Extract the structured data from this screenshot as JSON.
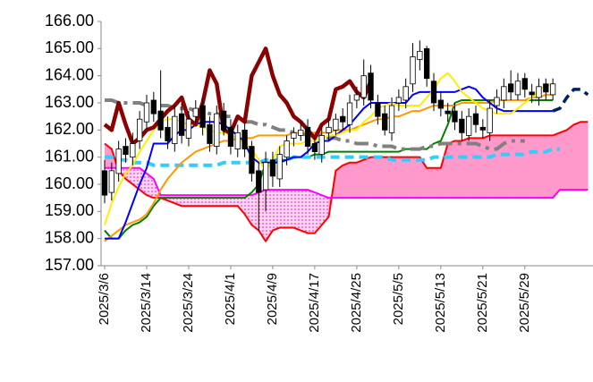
{
  "chart_data": {
    "type": "candlestick",
    "categories": [
      "2025/3/6",
      null,
      null,
      null,
      null,
      null,
      "2025/3/14",
      null,
      null,
      null,
      null,
      null,
      "2025/3/24",
      null,
      null,
      null,
      null,
      null,
      "2025/4/1",
      null,
      null,
      null,
      null,
      null,
      "2025/4/9",
      null,
      null,
      null,
      null,
      null,
      "2025/4/17",
      null,
      null,
      null,
      null,
      null,
      "2025/4/25",
      null,
      null,
      null,
      null,
      null,
      "2025/5/5",
      null,
      null,
      null,
      null,
      null,
      "2025/5/13",
      null,
      null,
      null,
      null,
      null,
      "2025/5/21",
      null,
      null,
      null,
      null,
      null,
      "2025/5/29",
      null,
      null,
      null,
      null,
      null,
      null,
      null,
      null,
      null
    ],
    "ylim": [
      157,
      166
    ],
    "yticks": [
      {
        "value": 157,
        "label": "157.00"
      },
      {
        "value": 158,
        "label": "158.00"
      },
      {
        "value": 159,
        "label": "159.00"
      },
      {
        "value": 160,
        "label": "160.00"
      },
      {
        "value": 161,
        "label": "161.00"
      },
      {
        "value": 162,
        "label": "162.00"
      },
      {
        "value": 163,
        "label": "163.00"
      },
      {
        "value": 164,
        "label": "164.00"
      },
      {
        "value": 165,
        "label": "165.00"
      },
      {
        "value": 166,
        "label": "166.00"
      }
    ],
    "candles": {
      "up_color": "#ffffff",
      "down_color": "#000000",
      "open": [
        160.5,
        159.7,
        160.4,
        161.4,
        161.0,
        161.6,
        162.3,
        163.1,
        162.7,
        162.1,
        161.5,
        162.6,
        161.7,
        162.5,
        162.9,
        162.2,
        161.4,
        162.7,
        162.1,
        161.3,
        162.0,
        161.4,
        160.5,
        159.8,
        160.9,
        160.2,
        161.0,
        161.7,
        161.8,
        162.1,
        161.5,
        161.1,
        161.9,
        162.0,
        162.5,
        162.2,
        163.1,
        163.2,
        164.1,
        163.0,
        162.6,
        161.9,
        163.0,
        163.1,
        163.7,
        164.6,
        165.0,
        163.8,
        163.1,
        162.7,
        162.7,
        162.4,
        161.8,
        162.6,
        162.1,
        161.9,
        162.9,
        163.1,
        163.7,
        163.3,
        163.9,
        163.4,
        163.2,
        163.7,
        163.3,
        null,
        null,
        null,
        null,
        null
      ],
      "high": [
        160.9,
        160.8,
        161.6,
        161.7,
        161.9,
        162.7,
        163.3,
        163.4,
        164.2,
        162.5,
        162.9,
        163.0,
        162.7,
        163.1,
        163.2,
        162.5,
        162.9,
        163.0,
        162.4,
        162.2,
        162.3,
        161.6,
        160.8,
        161.2,
        161.2,
        161.4,
        161.8,
        162.1,
        162.3,
        162.4,
        161.7,
        162.1,
        162.4,
        162.6,
        162.8,
        163.3,
        163.6,
        164.6,
        164.4,
        163.3,
        162.9,
        163.2,
        163.5,
        163.9,
        165.2,
        165.3,
        165.1,
        164.1,
        163.4,
        163.0,
        163.0,
        162.7,
        162.8,
        162.9,
        162.4,
        163.1,
        163.5,
        163.9,
        164.2,
        164.1,
        164.1,
        163.7,
        163.9,
        163.9,
        163.9,
        null,
        null,
        null,
        null,
        null
      ],
      "low": [
        159.3,
        159.4,
        160.1,
        160.8,
        160.7,
        161.3,
        162.0,
        162.3,
        161.7,
        161.3,
        161.2,
        161.5,
        161.4,
        162.2,
        161.8,
        161.2,
        161.1,
        161.8,
        161.1,
        161.0,
        161.0,
        160.1,
        158.3,
        159.0,
        159.9,
        159.9,
        160.7,
        161.4,
        161.6,
        161.1,
        160.9,
        160.8,
        161.6,
        161.8,
        162.0,
        161.9,
        162.8,
        162.9,
        162.8,
        162.2,
        161.8,
        161.6,
        162.7,
        162.8,
        163.4,
        164.2,
        163.6,
        162.7,
        162.5,
        162.3,
        162.0,
        161.6,
        161.6,
        161.9,
        161.7,
        161.6,
        162.6,
        162.8,
        163.1,
        163.1,
        163.2,
        163.0,
        162.9,
        163.1,
        163.1,
        null,
        null,
        null,
        null,
        null
      ],
      "close": [
        159.6,
        160.5,
        161.3,
        161.1,
        161.5,
        162.4,
        163.0,
        162.6,
        162.0,
        161.6,
        162.5,
        161.8,
        162.4,
        162.8,
        162.1,
        161.5,
        162.6,
        162.0,
        161.4,
        161.9,
        161.3,
        160.4,
        159.7,
        160.8,
        160.3,
        161.1,
        161.6,
        161.9,
        162.0,
        161.4,
        161.2,
        161.8,
        162.1,
        162.4,
        162.3,
        163.0,
        163.3,
        164.0,
        163.1,
        162.5,
        162.0,
        162.9,
        163.2,
        163.6,
        164.7,
        164.9,
        163.9,
        163.0,
        162.8,
        162.6,
        162.3,
        161.9,
        162.5,
        162.2,
        162.0,
        162.8,
        163.2,
        163.6,
        163.4,
        163.8,
        163.5,
        163.3,
        163.6,
        163.4,
        163.7,
        null,
        null,
        null,
        null,
        null
      ]
    },
    "cloud": {
      "upper_series": 0,
      "lower_series": 1,
      "fill_above": "#ff99cc",
      "fill_below": "#ff66cc"
    },
    "series": [
      {
        "color": "#ff0000",
        "width": 2,
        "values": [
          161.5,
          161.3,
          160.5,
          160.2,
          160.0,
          159.8,
          159.6,
          159.5,
          159.5,
          159.4,
          159.3,
          159.2,
          159.2,
          159.2,
          159.2,
          159.2,
          159.2,
          159.2,
          159.2,
          159.2,
          158.9,
          158.5,
          158.3,
          157.9,
          158.3,
          158.4,
          158.4,
          158.4,
          158.3,
          158.2,
          158.2,
          158.5,
          158.8,
          160.5,
          160.7,
          160.8,
          160.8,
          160.9,
          161.0,
          161.0,
          161.0,
          161.0,
          161.0,
          161.0,
          161.0,
          161.0,
          160.6,
          160.6,
          160.6,
          161.5,
          161.6,
          161.6,
          161.7,
          161.7,
          161.7,
          161.8,
          161.8,
          161.8,
          161.8,
          161.8,
          161.8,
          161.8,
          161.8,
          161.8,
          161.8,
          161.9,
          162.0,
          162.2,
          162.3,
          162.3
        ]
      },
      {
        "color": "#ff00ff",
        "width": 2,
        "values": [
          160.6,
          160.6,
          160.6,
          160.6,
          160.6,
          160.6,
          160.4,
          160.2,
          159.6,
          159.6,
          159.6,
          159.6,
          159.6,
          159.6,
          159.6,
          159.6,
          159.6,
          159.6,
          159.6,
          159.6,
          159.6,
          159.6,
          159.7,
          159.8,
          159.8,
          159.8,
          159.8,
          159.8,
          159.8,
          159.8,
          159.7,
          159.6,
          159.5,
          159.5,
          159.5,
          159.5,
          159.5,
          159.5,
          159.5,
          159.5,
          159.5,
          159.5,
          159.5,
          159.5,
          159.5,
          159.5,
          159.5,
          159.5,
          159.5,
          159.5,
          159.5,
          159.5,
          159.5,
          159.5,
          159.5,
          159.5,
          159.5,
          159.5,
          159.5,
          159.5,
          159.5,
          159.5,
          159.5,
          159.5,
          159.5,
          159.8,
          159.8,
          159.8,
          159.8,
          159.8
        ]
      },
      {
        "color": "#008000",
        "width": 2,
        "values": [
          158.3,
          158.0,
          158.0,
          158.3,
          158.5,
          158.6,
          158.8,
          159.2,
          159.5,
          159.5,
          159.5,
          159.5,
          159.5,
          159.5,
          159.5,
          159.5,
          159.5,
          159.5,
          159.5,
          159.5,
          159.5,
          159.7,
          160.0,
          160.8,
          160.8,
          160.9,
          160.9,
          161.0,
          161.0,
          161.0,
          161.1,
          161.1,
          161.2,
          161.2,
          161.2,
          161.2,
          161.2,
          161.2,
          161.2,
          161.2,
          161.2,
          161.2,
          161.2,
          161.3,
          161.3,
          161.3,
          161.3,
          161.5,
          161.6,
          162.2,
          163.0,
          163.1,
          163.1,
          163.1,
          163.1,
          163.1,
          163.1,
          163.1,
          163.1,
          163.1,
          163.1,
          163.1,
          163.1,
          163.1,
          163.1,
          null,
          null,
          null,
          null,
          null
        ]
      },
      {
        "color": "#33ccff",
        "width": 4,
        "dash": "10 6",
        "values": [
          161.0,
          161.0,
          160.9,
          160.9,
          160.8,
          160.8,
          160.8,
          160.7,
          160.7,
          160.7,
          160.7,
          160.7,
          160.7,
          160.7,
          160.7,
          160.7,
          160.7,
          160.8,
          160.8,
          160.8,
          160.8,
          160.8,
          160.8,
          160.9,
          160.9,
          160.9,
          160.9,
          161.0,
          161.0,
          161.0,
          161.0,
          161.0,
          161.0,
          161.0,
          161.0,
          161.0,
          161.0,
          161.0,
          161.0,
          161.0,
          161.0,
          160.9,
          160.9,
          160.9,
          160.9,
          160.9,
          160.9,
          161.0,
          161.0,
          161.0,
          161.0,
          161.0,
          161.0,
          161.0,
          161.0,
          161.0,
          161.1,
          161.1,
          161.1,
          161.1,
          161.1,
          161.2,
          161.2,
          161.2,
          161.3,
          161.3,
          null,
          null,
          null,
          null
        ]
      },
      {
        "color": "#808080",
        "width": 4,
        "dash": "16 6 4 6",
        "values": [
          163.1,
          163.1,
          163.0,
          163.0,
          163.0,
          163.0,
          162.9,
          162.9,
          162.9,
          162.9,
          162.8,
          162.8,
          162.8,
          162.7,
          162.7,
          162.6,
          162.6,
          162.5,
          162.5,
          162.4,
          162.3,
          162.3,
          162.2,
          162.2,
          162.1,
          162.0,
          162.0,
          161.9,
          161.9,
          161.8,
          161.8,
          161.8,
          161.7,
          161.7,
          161.6,
          161.6,
          161.5,
          161.5,
          161.5,
          161.4,
          161.4,
          161.4,
          161.3,
          161.3,
          161.3,
          161.3,
          161.4,
          161.4,
          161.5,
          161.5,
          161.5,
          161.5,
          161.5,
          161.5,
          161.4,
          161.3,
          161.3,
          161.5,
          161.6,
          161.6,
          161.6,
          null,
          null,
          null,
          null,
          null,
          null,
          null,
          null,
          null
        ]
      },
      {
        "color": "#ff9900",
        "width": 2,
        "values": [
          157.9,
          158.1,
          158.3,
          158.5,
          158.6,
          158.7,
          158.9,
          159.3,
          159.8,
          160.2,
          160.5,
          160.8,
          161.0,
          161.2,
          161.3,
          161.4,
          161.5,
          161.6,
          161.6,
          161.7,
          161.7,
          161.7,
          161.8,
          161.8,
          161.8,
          161.8,
          161.8,
          161.9,
          161.9,
          161.9,
          161.9,
          161.9,
          161.9,
          162.0,
          162.0,
          162.0,
          162.1,
          162.2,
          162.3,
          162.4,
          162.4,
          162.5,
          162.5,
          162.6,
          162.7,
          162.7,
          162.8,
          162.9,
          162.9,
          162.9,
          162.9,
          163.0,
          163.0,
          163.0,
          163.0,
          163.0,
          163.1,
          163.1,
          163.1,
          163.1,
          163.1,
          163.2,
          163.2,
          163.3,
          163.3,
          null,
          null,
          null,
          null,
          null
        ]
      },
      {
        "color": "#0000ff",
        "width": 2,
        "values": [
          158.0,
          158.0,
          158.0,
          158.6,
          159.3,
          160.0,
          160.6,
          161.5,
          161.5,
          161.5,
          161.8,
          162.0,
          162.0,
          162.2,
          162.3,
          162.3,
          162.3,
          162.2,
          162.0,
          161.8,
          161.5,
          161.0,
          160.8,
          160.8,
          160.8,
          160.8,
          160.9,
          161.0,
          161.0,
          161.2,
          161.5,
          161.6,
          161.6,
          161.8,
          162.0,
          162.2,
          162.5,
          162.8,
          163.0,
          163.0,
          163.0,
          163.0,
          163.0,
          163.0,
          163.3,
          163.4,
          163.4,
          163.4,
          163.4,
          163.4,
          163.4,
          163.5,
          163.6,
          163.5,
          163.2,
          163.0,
          162.8,
          162.7,
          162.7,
          162.7,
          162.7,
          162.7,
          162.7,
          162.7,
          162.7,
          null,
          null,
          null,
          null,
          null
        ]
      },
      {
        "color": "#ffee00",
        "width": 2,
        "values": [
          158.5,
          159.3,
          159.9,
          160.4,
          160.7,
          161.2,
          161.6,
          162.0,
          162.3,
          162.4,
          162.4,
          162.3,
          162.2,
          162.2,
          162.1,
          162.0,
          161.9,
          161.9,
          161.8,
          161.7,
          161.5,
          161.3,
          160.9,
          160.5,
          160.9,
          161.4,
          161.5,
          161.5,
          161.5,
          161.6,
          161.6,
          161.7,
          161.8,
          161.8,
          161.9,
          162.0,
          162.0,
          162.3,
          162.5,
          162.8,
          162.9,
          163.0,
          162.9,
          162.9,
          162.9,
          162.9,
          163.2,
          163.5,
          163.9,
          164.1,
          163.8,
          163.4,
          163.2,
          163.0,
          162.8,
          162.7,
          162.6,
          162.6,
          162.6,
          162.8,
          163.0,
          163.2,
          163.5,
          163.6,
          163.7,
          null,
          null,
          null,
          null,
          null
        ]
      },
      {
        "color": "#8b0000",
        "width": 4.5,
        "values": [
          162.2,
          162.0,
          163.0,
          162.2,
          161.5,
          161.7,
          162.0,
          162.1,
          162.4,
          162.7,
          162.9,
          163.2,
          162.4,
          162.2,
          163.0,
          164.2,
          163.7,
          162.0,
          161.9,
          162.5,
          162.3,
          164.0,
          164.5,
          165.0,
          164.0,
          163.3,
          163.0,
          162.5,
          162.3,
          162.0,
          161.7,
          162.2,
          162.4,
          163.5,
          163.6,
          163.8,
          163.4,
          163.2,
          163.8,
          null,
          null,
          null,
          null,
          null,
          null,
          null,
          null,
          null,
          null,
          null,
          null,
          null,
          null,
          null,
          null,
          null,
          null,
          null,
          null,
          null,
          null,
          null,
          null,
          null,
          null,
          null,
          null,
          null,
          null,
          null
        ]
      },
      {
        "color": "#002060",
        "width": 3.5,
        "dash": "10 6",
        "values": [
          null,
          null,
          null,
          null,
          null,
          null,
          null,
          null,
          null,
          null,
          null,
          null,
          null,
          null,
          null,
          null,
          null,
          null,
          null,
          null,
          null,
          null,
          null,
          null,
          null,
          null,
          null,
          null,
          null,
          null,
          null,
          null,
          null,
          null,
          null,
          null,
          null,
          null,
          null,
          null,
          null,
          null,
          null,
          null,
          null,
          null,
          null,
          null,
          null,
          null,
          null,
          null,
          null,
          null,
          null,
          null,
          null,
          null,
          null,
          null,
          null,
          null,
          null,
          null,
          162.7,
          162.8,
          163.2,
          163.5,
          163.5,
          163.3
        ]
      }
    ]
  }
}
